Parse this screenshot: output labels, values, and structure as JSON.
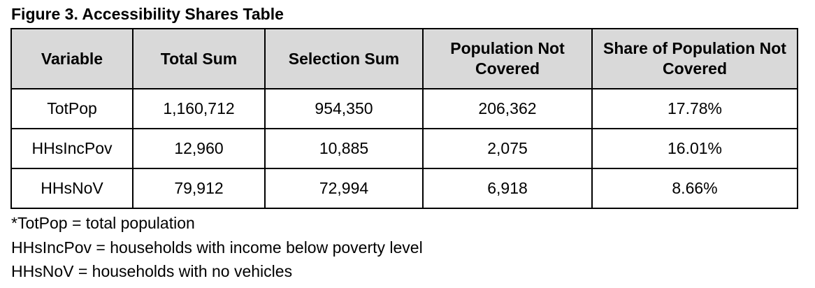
{
  "title": "Figure 3. Accessibility Shares Table",
  "table": {
    "headers": [
      "Variable",
      "Total Sum",
      "Selection Sum",
      "Population Not Covered",
      "Share of Population Not Covered"
    ],
    "rows": [
      [
        "TotPop",
        "1,160,712",
        "954,350",
        "206,362",
        "17.78%"
      ],
      [
        "HHsIncPov",
        "12,960",
        "10,885",
        "2,075",
        "16.01%"
      ],
      [
        "HHsNoV",
        "79,912",
        "72,994",
        "6,918",
        "8.66%"
      ]
    ],
    "header_background": "#d9d9d9"
  },
  "notes": [
    "*TotPop = total population",
    "HHsIncPov = households with income below poverty level",
    "HHsNoV = households with no vehicles"
  ]
}
